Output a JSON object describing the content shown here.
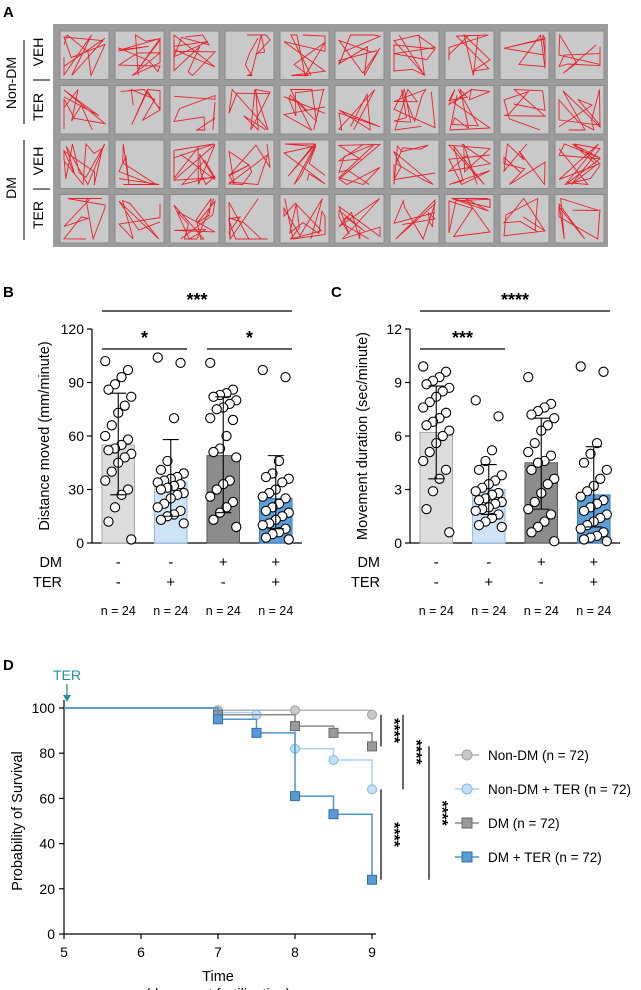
{
  "panel_labels": {
    "a": "A",
    "b": "B",
    "c": "C",
    "d": "D"
  },
  "panel_a": {
    "group_labels": [
      "Non-DM",
      "DM"
    ],
    "row_labels": [
      "VEH",
      "TER",
      "VEH",
      "TER"
    ],
    "wells_per_row": 10,
    "track_color": "#e8202a"
  },
  "condition_table": {
    "rows": [
      {
        "label": "DM",
        "values": [
          "-",
          "-",
          "+",
          "+"
        ]
      },
      {
        "label": "TER",
        "values": [
          "-",
          "+",
          "-",
          "+"
        ]
      }
    ],
    "n_labels": [
      "n = 24",
      "n = 24",
      "n = 24",
      "n = 24"
    ]
  },
  "colors": {
    "bar_fill": [
      "#dcdcdc",
      "#cfe3f7",
      "#8c8c8c",
      "#5b9fd8"
    ],
    "bar_stroke": [
      "#a8a8a8",
      "#8fbbe6",
      "#5a5a5a",
      "#3a7fbf"
    ],
    "nondm": "#b4b4b4",
    "nondm_ter": "#a9d0f1",
    "dm": "#8a8a8a",
    "dm_ter": "#4f94cf",
    "ter_arrow": "#1f93a6"
  },
  "chart_data": [
    {
      "type": "bar",
      "ylabel": "Distance moved (mm/minute)",
      "ylim": [
        0,
        120
      ],
      "yticks": [
        "0",
        "30",
        "60",
        "90",
        "120"
      ],
      "values": [
        55,
        34,
        49,
        25
      ],
      "errors": [
        [
          27,
          84
        ],
        [
          15,
          58
        ],
        [
          17,
          82
        ],
        [
          8,
          49
        ]
      ],
      "points": [
        [
          102,
          97,
          93,
          89,
          86,
          82,
          77,
          73,
          66,
          60,
          58,
          55,
          53,
          52,
          50,
          48,
          45,
          40,
          35,
          30,
          27,
          20,
          12,
          2
        ],
        [
          104,
          101,
          70,
          46,
          41,
          39,
          37,
          36,
          35,
          34,
          33,
          32,
          31,
          30,
          28,
          27,
          25,
          22,
          20,
          18,
          16,
          15,
          13,
          11
        ],
        [
          101,
          86,
          84,
          83,
          82,
          80,
          78,
          76,
          75,
          70,
          69,
          60,
          53,
          51,
          48,
          35,
          33,
          30,
          26,
          23,
          20,
          17,
          13,
          9
        ],
        [
          97,
          93,
          46,
          39,
          37,
          36,
          34,
          30,
          28,
          26,
          25,
          22,
          20,
          18,
          17,
          15,
          13,
          11,
          10,
          8,
          6,
          5,
          3,
          2
        ]
      ],
      "significance": [
        {
          "from": 0,
          "to": 3,
          "label": "***"
        },
        {
          "from": 0,
          "to": 1,
          "label": "*"
        },
        {
          "from": 2,
          "to": 3,
          "label": "*"
        }
      ]
    },
    {
      "type": "bar",
      "ylabel": "Movement duration (sec/minute)",
      "ylim": [
        0,
        12
      ],
      "yticks": [
        "0",
        "3",
        "6",
        "9",
        "12"
      ],
      "values": [
        6.2,
        3.0,
        4.5,
        2.7
      ],
      "errors": [
        [
          3.6,
          8.8
        ],
        [
          1.6,
          4.4
        ],
        [
          1.9,
          7.0
        ],
        [
          0.9,
          5.4
        ]
      ],
      "points": [
        [
          9.9,
          9.6,
          9.3,
          9.1,
          8.9,
          8.7,
          8.5,
          8.2,
          7.9,
          7.6,
          7.3,
          7.0,
          6.8,
          6.6,
          6.3,
          6.0,
          5.6,
          5.1,
          4.6,
          4.1,
          3.6,
          2.9,
          1.9,
          0.6
        ],
        [
          8.0,
          7.1,
          5.2,
          4.6,
          4.1,
          3.8,
          3.5,
          3.3,
          3.1,
          2.9,
          2.8,
          2.7,
          2.5,
          2.4,
          2.3,
          2.2,
          2.0,
          1.9,
          1.8,
          1.6,
          1.4,
          1.2,
          1.0,
          0.9
        ],
        [
          9.3,
          7.8,
          7.6,
          7.4,
          7.2,
          7.0,
          6.6,
          6.3,
          5.6,
          5.1,
          4.9,
          4.6,
          4.5,
          4.1,
          3.6,
          3.3,
          2.8,
          2.3,
          1.9,
          1.6,
          1.2,
          0.9,
          0.6,
          0.1
        ],
        [
          9.9,
          9.6,
          5.6,
          5.0,
          4.5,
          4.1,
          3.6,
          3.2,
          2.9,
          2.6,
          2.4,
          2.2,
          2.0,
          1.8,
          1.6,
          1.4,
          1.2,
          1.0,
          0.8,
          0.6,
          0.4,
          0.3,
          0.2,
          0.1
        ]
      ],
      "significance": [
        {
          "from": 0,
          "to": 3,
          "label": "****"
        },
        {
          "from": 0,
          "to": 1,
          "label": "***"
        }
      ]
    },
    {
      "type": "line",
      "xlabel": "Time",
      "xlabel2": "(days post fertilization)",
      "ylabel": "Probability of Survival",
      "xlim": [
        5,
        9
      ],
      "ylim": [
        0,
        100
      ],
      "xticks": [
        "5",
        "6",
        "7",
        "8",
        "9"
      ],
      "yticks": [
        "0",
        "20",
        "40",
        "60",
        "80",
        "100"
      ],
      "annotation": "TER",
      "series": [
        {
          "name": "Non-DM (n = 72)",
          "marker": "circle",
          "x": [
            5,
            7,
            8,
            9
          ],
          "y": [
            100,
            99,
            99,
            97
          ]
        },
        {
          "name": "Non-DM + TER (n = 72)",
          "marker": "circle",
          "x": [
            5,
            7,
            7.5,
            8,
            8.5,
            9
          ],
          "y": [
            100,
            98,
            97,
            82,
            77,
            64
          ]
        },
        {
          "name": "DM (n = 72)",
          "marker": "square",
          "x": [
            5,
            7,
            8,
            8.5,
            9
          ],
          "y": [
            100,
            97,
            92,
            89,
            83
          ]
        },
        {
          "name": "DM + TER (n = 72)",
          "marker": "square",
          "x": [
            5,
            7,
            7.5,
            8,
            8.5,
            9
          ],
          "y": [
            100,
            95,
            89,
            61,
            53,
            24
          ]
        }
      ],
      "significance": [
        {
          "pair": [
            0,
            2
          ],
          "label": "****"
        },
        {
          "pair": [
            1,
            3
          ],
          "label": "****"
        },
        {
          "pair": [
            0,
            1
          ],
          "label": "****"
        },
        {
          "pair": [
            2,
            3
          ],
          "label": "****"
        }
      ]
    }
  ]
}
